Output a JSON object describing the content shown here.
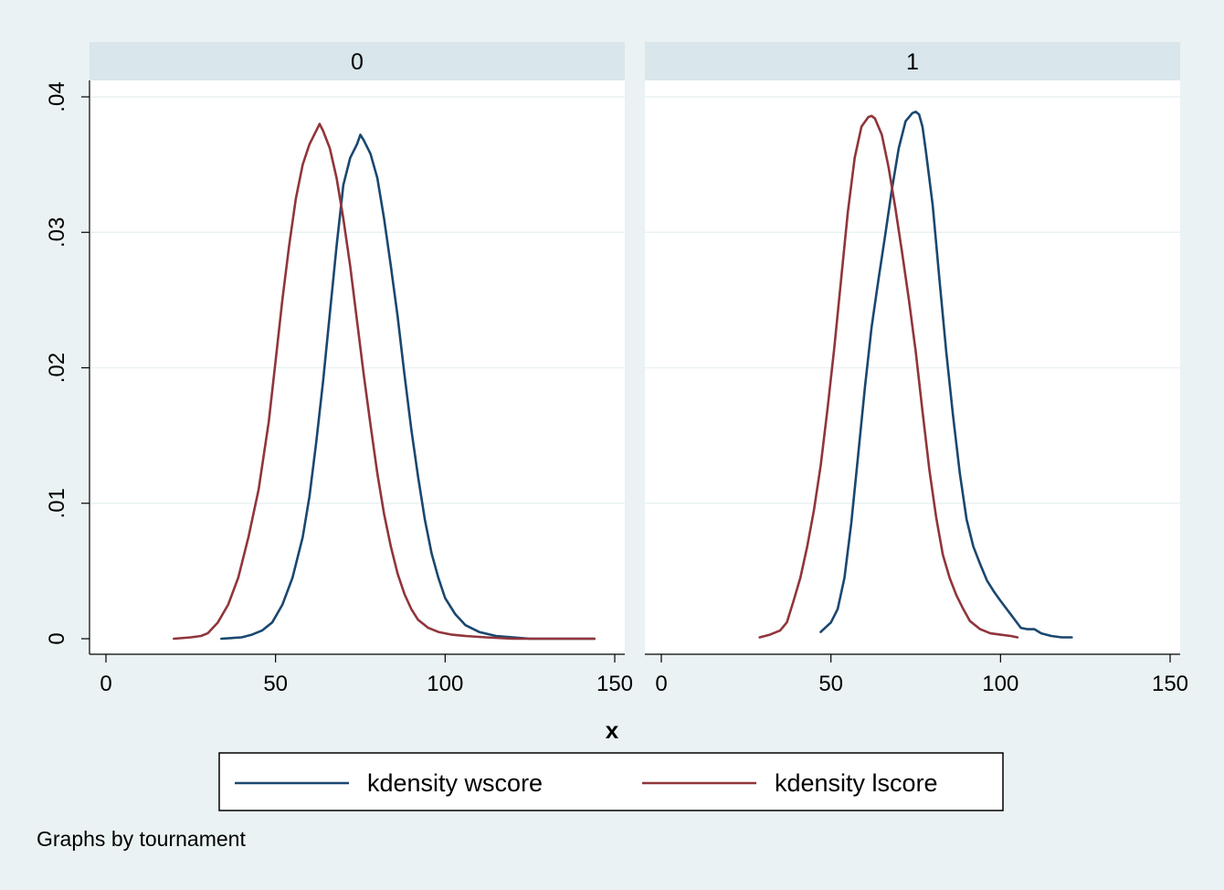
{
  "chart_data": {
    "type": "line",
    "subtitle_note": "Graphs by tournament",
    "xlabel": "x",
    "ylabel": "",
    "xlim": [
      0,
      150
    ],
    "ylim": [
      0,
      0.04
    ],
    "x_ticks": [
      0,
      50,
      100,
      150
    ],
    "y_ticks": [
      0,
      0.01,
      0.02,
      0.03,
      0.04
    ],
    "y_tick_labels": [
      "0",
      ".01",
      ".02",
      ".03",
      ".04"
    ],
    "grid": true,
    "legend_position": "bottom",
    "series_colors": {
      "kdensity wscore": "#1a476f",
      "kdensity lscore": "#90353b"
    },
    "panels": [
      {
        "label": "0",
        "series": [
          {
            "name": "kdensity wscore",
            "color": "#1a476f",
            "x": [
              34,
              40,
              43,
              46,
              49,
              52,
              55,
              58,
              60,
              62,
              64,
              66,
              68,
              70,
              72,
              74,
              75,
              76,
              78,
              80,
              82,
              84,
              86,
              88,
              90,
              92,
              94,
              96,
              98,
              100,
              103,
              106,
              110,
              115,
              120,
              125,
              130,
              144
            ],
            "y": [
              0.0,
              0.0001,
              0.0003,
              0.0006,
              0.0012,
              0.0025,
              0.0045,
              0.0075,
              0.0105,
              0.0145,
              0.019,
              0.024,
              0.029,
              0.0335,
              0.0355,
              0.0365,
              0.0372,
              0.0368,
              0.0358,
              0.034,
              0.031,
              0.0275,
              0.0238,
              0.0195,
              0.0155,
              0.012,
              0.0088,
              0.0063,
              0.0045,
              0.003,
              0.0018,
              0.001,
              0.0005,
              0.0002,
              0.0001,
              0.0,
              0.0,
              0.0
            ]
          },
          {
            "name": "kdensity lscore",
            "color": "#90353b",
            "x": [
              20,
              25,
              28,
              30,
              33,
              36,
              39,
              42,
              45,
              48,
              50,
              52,
              54,
              56,
              58,
              60,
              62,
              63,
              64,
              66,
              68,
              70,
              72,
              74,
              76,
              78,
              80,
              82,
              84,
              86,
              88,
              90,
              92,
              95,
              98,
              102,
              106,
              112,
              120,
              130,
              144
            ],
            "y": [
              0.0,
              0.0001,
              0.0002,
              0.0004,
              0.0012,
              0.0025,
              0.0045,
              0.0075,
              0.011,
              0.016,
              0.0205,
              0.025,
              0.029,
              0.0325,
              0.035,
              0.0365,
              0.0375,
              0.038,
              0.0375,
              0.0362,
              0.034,
              0.031,
              0.0275,
              0.0235,
              0.0195,
              0.0158,
              0.0122,
              0.0092,
              0.0068,
              0.0048,
              0.0033,
              0.0022,
              0.0014,
              0.0008,
              0.0005,
              0.0003,
              0.0002,
              0.0001,
              0.0,
              0.0,
              0.0
            ]
          }
        ]
      },
      {
        "label": "1",
        "series": [
          {
            "name": "kdensity wscore",
            "color": "#1a476f",
            "x": [
              47,
              50,
              52,
              54,
              56,
              58,
              60,
              62,
              64,
              66,
              68,
              70,
              72,
              74,
              75,
              76,
              77,
              78,
              80,
              82,
              84,
              86,
              88,
              90,
              92,
              94,
              96,
              98,
              100,
              103,
              106,
              108,
              110,
              112,
              115,
              118,
              121
            ],
            "y": [
              0.0005,
              0.0012,
              0.0022,
              0.0045,
              0.0085,
              0.0135,
              0.0185,
              0.023,
              0.0265,
              0.0298,
              0.0332,
              0.0362,
              0.0382,
              0.0388,
              0.0389,
              0.0387,
              0.0378,
              0.036,
              0.032,
              0.0265,
              0.0212,
              0.0165,
              0.0122,
              0.0088,
              0.0068,
              0.0055,
              0.0043,
              0.0035,
              0.0028,
              0.0018,
              0.0008,
              0.0007,
              0.0007,
              0.0004,
              0.0002,
              0.0001,
              0.0001
            ]
          },
          {
            "name": "kdensity lscore",
            "color": "#90353b",
            "x": [
              29,
              32,
              35,
              37,
              39,
              41,
              43,
              45,
              47,
              49,
              51,
              53,
              55,
              57,
              59,
              61,
              62,
              63,
              65,
              67,
              69,
              71,
              73,
              75,
              77,
              79,
              81,
              83,
              85,
              87,
              89,
              91,
              94,
              97,
              100,
              103,
              105
            ],
            "y": [
              0.0001,
              0.0003,
              0.0006,
              0.0012,
              0.0028,
              0.0045,
              0.0068,
              0.0095,
              0.0128,
              0.017,
              0.0215,
              0.0265,
              0.0315,
              0.0355,
              0.0378,
              0.0385,
              0.0386,
              0.0384,
              0.0372,
              0.0348,
              0.0318,
              0.0285,
              0.025,
              0.0212,
              0.0168,
              0.0125,
              0.009,
              0.0062,
              0.0045,
              0.0032,
              0.0022,
              0.0013,
              0.0007,
              0.0004,
              0.0003,
              0.0002,
              0.0001
            ]
          }
        ]
      }
    ]
  },
  "legend": {
    "items": [
      {
        "label": "kdensity wscore",
        "color": "#1a476f"
      },
      {
        "label": "kdensity lscore",
        "color": "#90353b"
      }
    ]
  }
}
